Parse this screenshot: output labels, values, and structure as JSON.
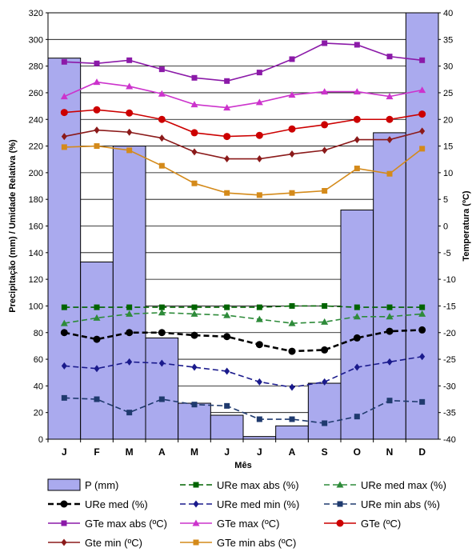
{
  "chart_data": {
    "type": "bar",
    "title": "",
    "xlabel": "Mês",
    "ylabel_left": "Precipitação (mm)  /  Umidade Relativa (%)",
    "ylabel_right": "Temperatura (ºC)",
    "categories": [
      "J",
      "F",
      "M",
      "A",
      "M",
      "J",
      "J",
      "A",
      "S",
      "O",
      "N",
      "D"
    ],
    "ylim_left": [
      0,
      320
    ],
    "ylim_right": [
      -40,
      40
    ],
    "yticks_left": [
      "0",
      "20",
      "40",
      "60",
      "80",
      "100",
      "120",
      "140",
      "160",
      "180",
      "200",
      "220",
      "240",
      "260",
      "280",
      "300",
      "320"
    ],
    "yticks_right": [
      "-40",
      "-35",
      "-30",
      "-25",
      "-20",
      "-15",
      "-10",
      "-5",
      "0",
      "5",
      "10",
      "15",
      "20",
      "25",
      "30",
      "35",
      "40"
    ],
    "grid": "horizontal",
    "legend_position": "bottom",
    "series": [
      {
        "name": "P (mm)",
        "axis": "left",
        "kind": "bar",
        "color": "#aaaaee",
        "values": [
          286,
          133,
          220,
          76,
          27,
          18,
          2,
          10,
          42,
          172,
          230,
          320
        ]
      },
      {
        "name": "URe max abs (%)",
        "axis": "left",
        "kind": "line",
        "color": "#006400",
        "dash": "dash",
        "marker": "square",
        "values": [
          99,
          99,
          99,
          99,
          99,
          99,
          99,
          100,
          100,
          99,
          99,
          99
        ]
      },
      {
        "name": "URe med max (%)",
        "axis": "left",
        "kind": "line",
        "color": "#2e8b3a",
        "dash": "dash",
        "marker": "triangle",
        "values": [
          87,
          91,
          94,
          95,
          94,
          93,
          90,
          87,
          88,
          92,
          92,
          94
        ]
      },
      {
        "name": "URe med (%)",
        "axis": "left",
        "kind": "line",
        "color": "#000000",
        "dash": "dash",
        "marker": "circle",
        "values": [
          80,
          75,
          80,
          80,
          78,
          77,
          71,
          66,
          67,
          76,
          81,
          82
        ]
      },
      {
        "name": "URe med min (%)",
        "axis": "left",
        "kind": "line",
        "color": "#1a1a8c",
        "dash": "dash",
        "marker": "diamond",
        "values": [
          55,
          53,
          58,
          57,
          54,
          51,
          43,
          39,
          43,
          54,
          58,
          62
        ]
      },
      {
        "name": "URe min abs (%)",
        "axis": "left",
        "kind": "line",
        "color": "#1f3a6e",
        "dash": "dash",
        "marker": "square",
        "values": [
          31,
          30,
          20,
          30,
          26,
          25,
          15,
          15,
          12,
          17,
          29,
          28
        ]
      },
      {
        "name": "GTe max abs (ºC)",
        "axis": "right",
        "kind": "line",
        "color": "#8b1aa8",
        "marker": "square",
        "values": [
          30.8,
          30.5,
          31.1,
          29.4,
          27.8,
          27.2,
          28.8,
          31.3,
          34.3,
          34.0,
          31.8,
          31.1
        ]
      },
      {
        "name": "GTe max (ºC)",
        "axis": "right",
        "kind": "line",
        "color": "#cc33cc",
        "marker": "triangle",
        "values": [
          24.3,
          27.0,
          26.2,
          24.8,
          22.8,
          22.2,
          23.2,
          24.6,
          25.2,
          25.2,
          24.3,
          25.5
        ]
      },
      {
        "name": "GTe (ºC)",
        "axis": "right",
        "kind": "line",
        "color": "#cc0000",
        "marker": "circle",
        "values": [
          21.3,
          21.8,
          21.2,
          20.0,
          17.5,
          16.8,
          17.0,
          18.2,
          19.0,
          20.0,
          20.0,
          21.0
        ]
      },
      {
        "name": "Gte min (ºC)",
        "axis": "right",
        "kind": "line",
        "color": "#8b1a1a",
        "marker": "diamond",
        "values": [
          16.8,
          18.0,
          17.6,
          16.5,
          13.9,
          12.6,
          12.6,
          13.5,
          14.2,
          16.2,
          16.2,
          17.8
        ]
      },
      {
        "name": "GTe min abs (ºC)",
        "axis": "right",
        "kind": "line",
        "color": "#d48a1a",
        "marker": "square",
        "values": [
          14.8,
          15.0,
          14.2,
          11.3,
          8.0,
          6.2,
          5.8,
          6.2,
          6.6,
          10.8,
          9.8,
          14.5
        ]
      }
    ]
  }
}
